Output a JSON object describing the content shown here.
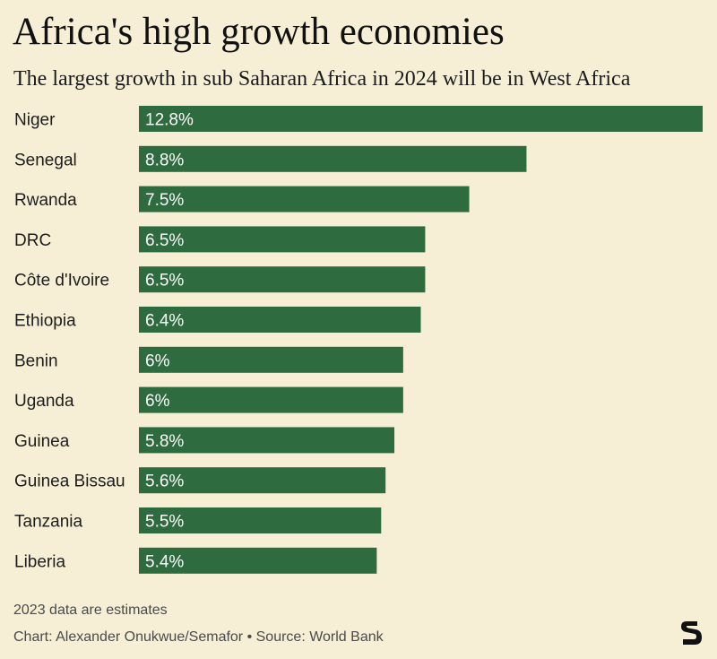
{
  "title": "Africa's high growth economies",
  "subtitle": "The largest growth in sub Saharan Africa in 2024 will be in West Africa",
  "note": "2023 data are estimates",
  "credit": "Chart: Alexander Onukwue/Semafor • Source: World Bank",
  "logo": {
    "letter": "S",
    "icon": "semafor-logo-icon"
  },
  "colors": {
    "background": "#f6efd6",
    "bar": "#2e6b3f",
    "bar_text": "#ffffff",
    "label_text": "#1d1d1d"
  },
  "chart_data": {
    "type": "bar",
    "orientation": "horizontal",
    "title": "Africa's high growth economies",
    "subtitle": "The largest growth in sub Saharan Africa in 2024 will be in West Africa",
    "categories": [
      "Niger",
      "Senegal",
      "Rwanda",
      "DRC",
      "Côte d'Ivoire",
      "Ethiopia",
      "Benin",
      "Uganda",
      "Guinea",
      "Guinea Bissau",
      "Tanzania",
      "Liberia"
    ],
    "values": [
      12.8,
      8.8,
      7.5,
      6.5,
      6.5,
      6.4,
      6,
      6,
      5.8,
      5.6,
      5.5,
      5.4
    ],
    "data_labels": [
      "12.8%",
      "8.8%",
      "7.5%",
      "6.5%",
      "6.5%",
      "6.4%",
      "6%",
      "6%",
      "5.8%",
      "5.6%",
      "5.5%",
      "5.4%"
    ],
    "unit": "%",
    "xlim": [
      0,
      12.8
    ],
    "grid": false,
    "legend": "none"
  }
}
